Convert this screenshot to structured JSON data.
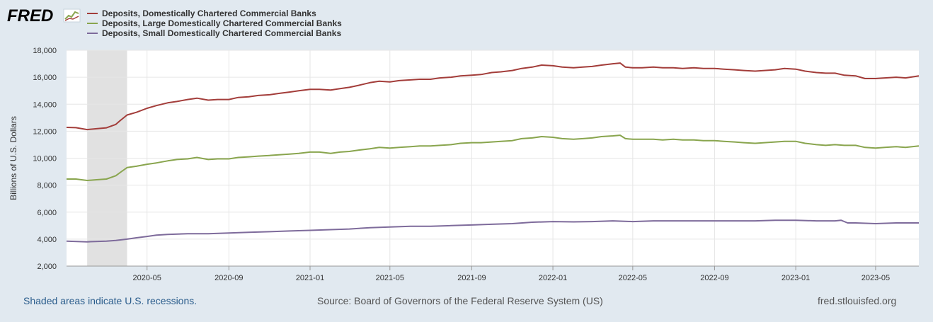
{
  "logo": {
    "text": "FRED",
    "icon": "fred-sparkline-icon",
    "color": "#000000"
  },
  "footer": {
    "recession_note": "Shaded areas indicate U.S. recessions.",
    "source": "Source: Board of Governors of the Federal Reserve System (US)",
    "site": "fred.stlouisfed.org"
  },
  "colors": {
    "background": "#e1e9f0",
    "plot_background": "#ffffff",
    "gridline": "#e6e6e6",
    "recession_shade": "#e1e1e1",
    "link": "#2b5d8c",
    "text": "#555555"
  },
  "chart_data": {
    "type": "line",
    "title": "",
    "xlabel": "",
    "ylabel": "Billions of U.S. Dollars",
    "ylim": [
      2000,
      18000
    ],
    "yticks": [
      2000,
      4000,
      6000,
      8000,
      10000,
      12000,
      14000,
      16000,
      18000
    ],
    "ytick_labels": [
      "2,000",
      "4,000",
      "6,000",
      "8,000",
      "10,000",
      "12,000",
      "14,000",
      "16,000",
      "18,000"
    ],
    "x_start": "2020-01-01",
    "x_end": "2023-07-05",
    "xticks": [
      "2020-05-01",
      "2020-09-01",
      "2021-01-01",
      "2021-05-01",
      "2021-09-01",
      "2022-01-01",
      "2022-05-01",
      "2022-09-01",
      "2023-01-01",
      "2023-05-01"
    ],
    "xtick_labels": [
      "2020-05",
      "2020-09",
      "2021-01",
      "2021-05",
      "2021-09",
      "2022-01",
      "2022-05",
      "2022-09",
      "2023-01",
      "2023-05"
    ],
    "grid": true,
    "legend_position": "top-left",
    "recessions": [
      {
        "start": "2020-02-01",
        "end": "2020-04-01"
      }
    ],
    "series": [
      {
        "name": "Deposits, Domestically Chartered Commercial Banks",
        "color": "#a33d3a",
        "points": [
          [
            "2020-01-01",
            12280
          ],
          [
            "2020-01-15",
            12260
          ],
          [
            "2020-02-01",
            12120
          ],
          [
            "2020-02-15",
            12180
          ],
          [
            "2020-03-01",
            12250
          ],
          [
            "2020-03-15",
            12500
          ],
          [
            "2020-03-22",
            12800
          ],
          [
            "2020-04-01",
            13200
          ],
          [
            "2020-04-15",
            13400
          ],
          [
            "2020-05-01",
            13700
          ],
          [
            "2020-05-15",
            13900
          ],
          [
            "2020-06-01",
            14100
          ],
          [
            "2020-06-15",
            14200
          ],
          [
            "2020-07-01",
            14350
          ],
          [
            "2020-07-15",
            14450
          ],
          [
            "2020-08-01",
            14300
          ],
          [
            "2020-08-15",
            14350
          ],
          [
            "2020-09-01",
            14350
          ],
          [
            "2020-09-15",
            14500
          ],
          [
            "2020-10-01",
            14550
          ],
          [
            "2020-10-15",
            14650
          ],
          [
            "2020-11-01",
            14700
          ],
          [
            "2020-11-15",
            14800
          ],
          [
            "2020-12-01",
            14900
          ],
          [
            "2020-12-15",
            15000
          ],
          [
            "2021-01-01",
            15100
          ],
          [
            "2021-01-15",
            15100
          ],
          [
            "2021-02-01",
            15050
          ],
          [
            "2021-02-15",
            15150
          ],
          [
            "2021-03-01",
            15250
          ],
          [
            "2021-03-15",
            15400
          ],
          [
            "2021-04-01",
            15600
          ],
          [
            "2021-04-15",
            15700
          ],
          [
            "2021-05-01",
            15650
          ],
          [
            "2021-05-15",
            15750
          ],
          [
            "2021-06-01",
            15800
          ],
          [
            "2021-06-15",
            15850
          ],
          [
            "2021-07-01",
            15850
          ],
          [
            "2021-07-15",
            15950
          ],
          [
            "2021-08-01",
            16000
          ],
          [
            "2021-08-15",
            16100
          ],
          [
            "2021-09-01",
            16150
          ],
          [
            "2021-09-15",
            16200
          ],
          [
            "2021-10-01",
            16350
          ],
          [
            "2021-10-15",
            16400
          ],
          [
            "2021-11-01",
            16500
          ],
          [
            "2021-11-15",
            16650
          ],
          [
            "2021-12-01",
            16750
          ],
          [
            "2021-12-15",
            16900
          ],
          [
            "2022-01-01",
            16850
          ],
          [
            "2022-01-15",
            16750
          ],
          [
            "2022-02-01",
            16700
          ],
          [
            "2022-02-15",
            16750
          ],
          [
            "2022-03-01",
            16800
          ],
          [
            "2022-03-15",
            16900
          ],
          [
            "2022-04-01",
            17000
          ],
          [
            "2022-04-12",
            17050
          ],
          [
            "2022-04-20",
            16750
          ],
          [
            "2022-05-01",
            16700
          ],
          [
            "2022-05-15",
            16700
          ],
          [
            "2022-06-01",
            16750
          ],
          [
            "2022-06-15",
            16700
          ],
          [
            "2022-07-01",
            16700
          ],
          [
            "2022-07-15",
            16650
          ],
          [
            "2022-08-01",
            16700
          ],
          [
            "2022-08-15",
            16650
          ],
          [
            "2022-09-01",
            16650
          ],
          [
            "2022-09-15",
            16600
          ],
          [
            "2022-10-01",
            16550
          ],
          [
            "2022-10-15",
            16500
          ],
          [
            "2022-11-01",
            16450
          ],
          [
            "2022-11-15",
            16500
          ],
          [
            "2022-12-01",
            16550
          ],
          [
            "2022-12-15",
            16650
          ],
          [
            "2023-01-01",
            16600
          ],
          [
            "2023-01-15",
            16450
          ],
          [
            "2023-02-01",
            16350
          ],
          [
            "2023-02-15",
            16300
          ],
          [
            "2023-03-01",
            16300
          ],
          [
            "2023-03-15",
            16150
          ],
          [
            "2023-04-01",
            16100
          ],
          [
            "2023-04-15",
            15900
          ],
          [
            "2023-05-01",
            15900
          ],
          [
            "2023-05-15",
            15950
          ],
          [
            "2023-06-01",
            16000
          ],
          [
            "2023-06-15",
            15950
          ],
          [
            "2023-07-05",
            16100
          ]
        ]
      },
      {
        "name": "Deposits, Large Domestically Chartered Commercial Banks",
        "color": "#89a54e",
        "points": [
          [
            "2020-01-01",
            8450
          ],
          [
            "2020-01-15",
            8450
          ],
          [
            "2020-02-01",
            8350
          ],
          [
            "2020-02-15",
            8400
          ],
          [
            "2020-03-01",
            8450
          ],
          [
            "2020-03-15",
            8700
          ],
          [
            "2020-03-22",
            8950
          ],
          [
            "2020-04-01",
            9300
          ],
          [
            "2020-04-15",
            9400
          ],
          [
            "2020-05-01",
            9550
          ],
          [
            "2020-05-15",
            9650
          ],
          [
            "2020-06-01",
            9800
          ],
          [
            "2020-06-15",
            9900
          ],
          [
            "2020-07-01",
            9950
          ],
          [
            "2020-07-15",
            10050
          ],
          [
            "2020-08-01",
            9900
          ],
          [
            "2020-08-15",
            9950
          ],
          [
            "2020-09-01",
            9950
          ],
          [
            "2020-09-15",
            10050
          ],
          [
            "2020-10-01",
            10100
          ],
          [
            "2020-10-15",
            10150
          ],
          [
            "2020-11-01",
            10200
          ],
          [
            "2020-11-15",
            10250
          ],
          [
            "2020-12-01",
            10300
          ],
          [
            "2020-12-15",
            10350
          ],
          [
            "2021-01-01",
            10450
          ],
          [
            "2021-01-15",
            10450
          ],
          [
            "2021-02-01",
            10350
          ],
          [
            "2021-02-15",
            10450
          ],
          [
            "2021-03-01",
            10500
          ],
          [
            "2021-03-15",
            10600
          ],
          [
            "2021-04-01",
            10700
          ],
          [
            "2021-04-15",
            10800
          ],
          [
            "2021-05-01",
            10750
          ],
          [
            "2021-05-15",
            10800
          ],
          [
            "2021-06-01",
            10850
          ],
          [
            "2021-06-15",
            10900
          ],
          [
            "2021-07-01",
            10900
          ],
          [
            "2021-07-15",
            10950
          ],
          [
            "2021-08-01",
            11000
          ],
          [
            "2021-08-15",
            11100
          ],
          [
            "2021-09-01",
            11150
          ],
          [
            "2021-09-15",
            11150
          ],
          [
            "2021-10-01",
            11200
          ],
          [
            "2021-10-15",
            11250
          ],
          [
            "2021-11-01",
            11300
          ],
          [
            "2021-11-15",
            11450
          ],
          [
            "2021-12-01",
            11500
          ],
          [
            "2021-12-15",
            11600
          ],
          [
            "2022-01-01",
            11550
          ],
          [
            "2022-01-15",
            11450
          ],
          [
            "2022-02-01",
            11400
          ],
          [
            "2022-02-15",
            11450
          ],
          [
            "2022-03-01",
            11500
          ],
          [
            "2022-03-15",
            11600
          ],
          [
            "2022-04-01",
            11650
          ],
          [
            "2022-04-12",
            11700
          ],
          [
            "2022-04-20",
            11450
          ],
          [
            "2022-05-01",
            11400
          ],
          [
            "2022-05-15",
            11400
          ],
          [
            "2022-06-01",
            11400
          ],
          [
            "2022-06-15",
            11350
          ],
          [
            "2022-07-01",
            11400
          ],
          [
            "2022-07-15",
            11350
          ],
          [
            "2022-08-01",
            11350
          ],
          [
            "2022-08-15",
            11300
          ],
          [
            "2022-09-01",
            11300
          ],
          [
            "2022-09-15",
            11250
          ],
          [
            "2022-10-01",
            11200
          ],
          [
            "2022-10-15",
            11150
          ],
          [
            "2022-11-01",
            11100
          ],
          [
            "2022-11-15",
            11150
          ],
          [
            "2022-12-01",
            11200
          ],
          [
            "2022-12-15",
            11250
          ],
          [
            "2023-01-01",
            11250
          ],
          [
            "2023-01-15",
            11100
          ],
          [
            "2023-02-01",
            11000
          ],
          [
            "2023-02-15",
            10950
          ],
          [
            "2023-03-01",
            11000
          ],
          [
            "2023-03-15",
            10950
          ],
          [
            "2023-04-01",
            10950
          ],
          [
            "2023-04-15",
            10800
          ],
          [
            "2023-05-01",
            10750
          ],
          [
            "2023-05-15",
            10800
          ],
          [
            "2023-06-01",
            10850
          ],
          [
            "2023-06-15",
            10800
          ],
          [
            "2023-07-05",
            10900
          ]
        ]
      },
      {
        "name": "Deposits, Small Domestically Chartered Commercial Banks",
        "color": "#7e6b9b",
        "points": [
          [
            "2020-01-01",
            3850
          ],
          [
            "2020-02-01",
            3800
          ],
          [
            "2020-03-01",
            3850
          ],
          [
            "2020-03-15",
            3900
          ],
          [
            "2020-04-01",
            4000
          ],
          [
            "2020-04-15",
            4100
          ],
          [
            "2020-05-01",
            4200
          ],
          [
            "2020-05-15",
            4300
          ],
          [
            "2020-06-01",
            4350
          ],
          [
            "2020-07-01",
            4400
          ],
          [
            "2020-08-01",
            4400
          ],
          [
            "2020-09-01",
            4450
          ],
          [
            "2020-10-01",
            4500
          ],
          [
            "2020-11-01",
            4550
          ],
          [
            "2020-12-01",
            4600
          ],
          [
            "2021-01-01",
            4650
          ],
          [
            "2021-02-01",
            4700
          ],
          [
            "2021-03-01",
            4750
          ],
          [
            "2021-04-01",
            4850
          ],
          [
            "2021-05-01",
            4900
          ],
          [
            "2021-06-01",
            4950
          ],
          [
            "2021-07-01",
            4950
          ],
          [
            "2021-08-01",
            5000
          ],
          [
            "2021-09-01",
            5050
          ],
          [
            "2021-10-01",
            5100
          ],
          [
            "2021-11-01",
            5150
          ],
          [
            "2021-12-01",
            5250
          ],
          [
            "2022-01-01",
            5300
          ],
          [
            "2022-02-01",
            5280
          ],
          [
            "2022-03-01",
            5300
          ],
          [
            "2022-04-01",
            5350
          ],
          [
            "2022-05-01",
            5300
          ],
          [
            "2022-06-01",
            5350
          ],
          [
            "2022-07-01",
            5350
          ],
          [
            "2022-08-01",
            5350
          ],
          [
            "2022-09-01",
            5350
          ],
          [
            "2022-10-01",
            5350
          ],
          [
            "2022-11-01",
            5350
          ],
          [
            "2022-12-01",
            5400
          ],
          [
            "2023-01-01",
            5400
          ],
          [
            "2023-02-01",
            5350
          ],
          [
            "2023-03-01",
            5350
          ],
          [
            "2023-03-10",
            5400
          ],
          [
            "2023-03-20",
            5200
          ],
          [
            "2023-04-01",
            5200
          ],
          [
            "2023-05-01",
            5150
          ],
          [
            "2023-06-01",
            5200
          ],
          [
            "2023-07-05",
            5200
          ]
        ]
      }
    ]
  }
}
